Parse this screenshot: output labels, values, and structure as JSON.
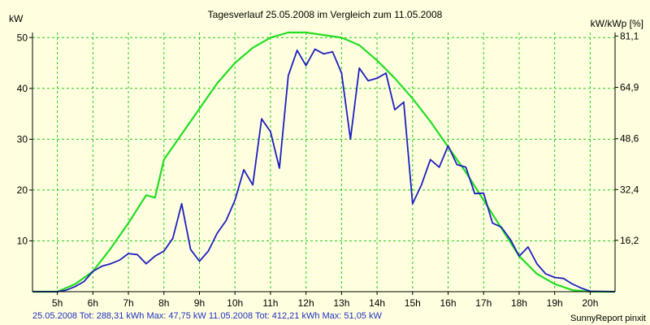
{
  "chart_data": {
    "type": "line",
    "title": "Tagesverlauf 25.05.2008 im Vergleich zum 11.05.2008",
    "ylabel_left": "kW",
    "ylabel_right": "kW/kWp [%]",
    "x_unit": "hour",
    "xlim": [
      4.3,
      20.7
    ],
    "ylim": [
      0,
      51
    ],
    "x_ticks": [
      5,
      6,
      7,
      8,
      9,
      10,
      11,
      12,
      13,
      14,
      15,
      16,
      17,
      18,
      19,
      20
    ],
    "x_tick_labels": [
      "5h",
      "6h",
      "7h",
      "8h",
      "9h",
      "10h",
      "11h",
      "12h",
      "13h",
      "14h",
      "15h",
      "16h",
      "17h",
      "18h",
      "19h",
      "20h"
    ],
    "y_ticks_left": [
      10,
      20,
      30,
      40,
      50
    ],
    "y_ticks_right": [
      {
        "value": 10.1,
        "label": "16,2"
      },
      {
        "value": 20.1,
        "label": "32,4"
      },
      {
        "value": 30.1,
        "label": "48,6"
      },
      {
        "value": 40.2,
        "label": "64,9"
      },
      {
        "value": 50.3,
        "label": "81,1"
      }
    ],
    "grid": true,
    "colors": {
      "background": "#ffffe0",
      "grid": "#22cc22",
      "axis": "#000000",
      "series_a": "#1f1fbf",
      "series_b": "#22dd22"
    },
    "series": [
      {
        "name": "25.05.2008",
        "color": "#1f1fbf",
        "x": [
          4.3,
          5.0,
          5.25,
          5.5,
          5.75,
          6.0,
          6.25,
          6.5,
          6.75,
          7.0,
          7.25,
          7.5,
          7.75,
          8.0,
          8.25,
          8.5,
          8.75,
          9.0,
          9.25,
          9.5,
          9.75,
          10.0,
          10.25,
          10.5,
          10.75,
          11.0,
          11.25,
          11.5,
          11.75,
          12.0,
          12.25,
          12.5,
          12.75,
          13.0,
          13.25,
          13.5,
          13.75,
          14.0,
          14.25,
          14.5,
          14.75,
          15.0,
          15.25,
          15.5,
          15.75,
          16.0,
          16.25,
          16.5,
          16.75,
          17.0,
          17.25,
          17.5,
          17.75,
          18.0,
          18.25,
          18.5,
          18.75,
          19.0,
          19.25,
          19.5,
          19.75,
          20.0,
          20.7
        ],
        "values": [
          0,
          0,
          0.3,
          1.0,
          2.0,
          4.0,
          5.0,
          5.5,
          6.2,
          7.5,
          7.3,
          5.5,
          7.0,
          8.0,
          10.5,
          17.3,
          8.3,
          6.0,
          8.0,
          11.5,
          14.0,
          18.0,
          24.0,
          21.0,
          34.0,
          31.5,
          24.3,
          42.5,
          47.5,
          44.5,
          47.7,
          46.8,
          47.2,
          43.0,
          30.0,
          44.0,
          41.5,
          42.0,
          43.0,
          35.8,
          37.3,
          17.3,
          21.0,
          26.0,
          24.5,
          28.7,
          25.0,
          24.5,
          19.3,
          19.4,
          13.5,
          12.7,
          10.3,
          7.0,
          8.8,
          5.5,
          3.5,
          2.8,
          2.6,
          1.5,
          0.7,
          0.1,
          0
        ]
      },
      {
        "name": "11.05.2008",
        "color": "#22dd22",
        "x": [
          4.3,
          5.0,
          5.5,
          6.0,
          6.5,
          7.0,
          7.5,
          7.75,
          8.0,
          8.5,
          9.0,
          9.5,
          10.0,
          10.5,
          11.0,
          11.5,
          12.0,
          12.5,
          13.0,
          13.5,
          14.0,
          14.5,
          15.0,
          15.5,
          16.0,
          16.5,
          17.0,
          17.5,
          18.0,
          18.5,
          19.0,
          19.5,
          20.0,
          20.7
        ],
        "values": [
          0,
          0,
          1.5,
          4.0,
          8.5,
          13.5,
          19.0,
          18.5,
          26.0,
          31.0,
          36.0,
          41.0,
          45.0,
          48.0,
          50.0,
          51.0,
          51.0,
          50.5,
          50.0,
          48.5,
          45.5,
          42.0,
          38.0,
          33.5,
          28.5,
          23.5,
          18.0,
          12.5,
          7.0,
          3.5,
          1.5,
          0.3,
          0,
          0
        ]
      }
    ],
    "footer_left": "25.05.2008 Tot: 288,31 kWh Max: 47,75 kW 11.05.2008 Tot: 412,21 kWh Max: 51,05 kW",
    "footer_right": "SunnyReport pinxit"
  }
}
